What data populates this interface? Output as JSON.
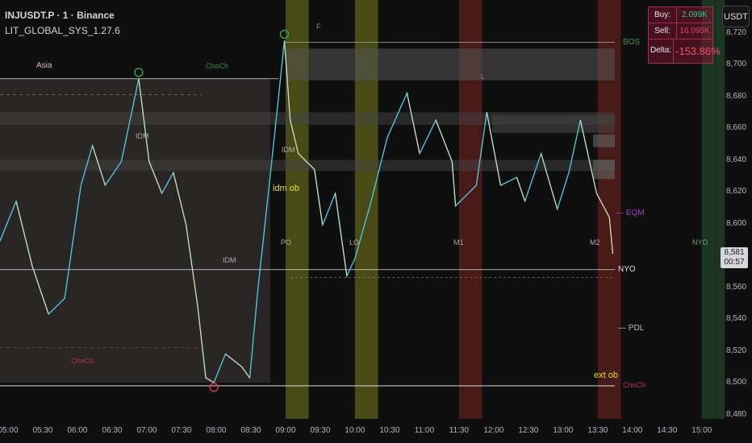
{
  "header": {
    "symbol": "INJUSDT.P · 1 · Binance",
    "indicator": "LIT_GLOBAL_SYS_1.27.6"
  },
  "currency_button": "USDT",
  "delta_table": {
    "rows": [
      {
        "key": "Buy:",
        "value": "2.099K",
        "color": "#26d07c"
      },
      {
        "key": "Sell:",
        "value": "16.095K",
        "color": "#e0426a"
      },
      {
        "key": "Delta:",
        "value": "-153.86%",
        "color": "#f0506e"
      }
    ]
  },
  "current_price": {
    "price": "8,581",
    "countdown": "00:57"
  },
  "colors": {
    "background": "#0f0f0f",
    "up": "#4fc3d9",
    "down": "#f0e6b0",
    "session_yellow": "#5b5f1a",
    "session_red": "#4a1d1a",
    "session_green": "#1d3a24",
    "asia_box": "#2a2625"
  },
  "annotations": [
    {
      "text": "Asia",
      "color": "#e0b0c0"
    },
    {
      "text": "ChoCh",
      "color": "#3c8c4a"
    },
    {
      "text": "F",
      "color": "#888"
    },
    {
      "text": "L",
      "color": "#888"
    },
    {
      "text": "BOS",
      "color": "#4c8c5a"
    },
    {
      "text": "IDM",
      "color": "#aaa"
    },
    {
      "text": "IDM",
      "color": "#aaa"
    },
    {
      "text": "idm ob",
      "color": "#d9e03a"
    },
    {
      "text": "PO",
      "color": "#aaa"
    },
    {
      "text": "LO",
      "color": "#aaa"
    },
    {
      "text": "M1",
      "color": "#aaa"
    },
    {
      "text": "M2",
      "color": "#aaa"
    },
    {
      "text": "IDM",
      "color": "#aaa"
    },
    {
      "text": "NYO",
      "color": "#ddd"
    },
    {
      "text": "NYO",
      "color": "#6aa07a"
    },
    {
      "text": "— EQM",
      "color": "#a040c0"
    },
    {
      "text": "— PDL",
      "color": "#bbb"
    },
    {
      "text": "ChoCh",
      "color": "#c0304a"
    },
    {
      "text": "ext ob",
      "color": "#d9e03a"
    },
    {
      "text": "ChoCh",
      "color": "#c0304a"
    }
  ],
  "chart_data": {
    "type": "line",
    "title": "",
    "xlabel": "",
    "ylabel": "",
    "ylim": [
      8480,
      8730
    ],
    "xlim": [
      "04:53",
      "15:45"
    ],
    "y_ticks": [
      "8,720",
      "8,700",
      "8,680",
      "8,660",
      "8,640",
      "8,620",
      "8,600",
      "8,560",
      "8,540",
      "8,520",
      "8,500",
      "8,480"
    ],
    "y_tick_values": [
      8720,
      8700,
      8680,
      8660,
      8640,
      8620,
      8600,
      8560,
      8540,
      8520,
      8500,
      8480
    ],
    "x_ticks": [
      "05:00",
      "05:30",
      "06:00",
      "06:30",
      "07:00",
      "07:30",
      "08:00",
      "08:30",
      "09:00",
      "09:30",
      "10:00",
      "10:30",
      "11:00",
      "11:30",
      "12:00",
      "12:30",
      "13:00",
      "13:30",
      "14:00",
      "14:30",
      "15:00"
    ],
    "series": [
      {
        "x": [
          "04:53",
          "05:07",
          "05:21",
          "05:35",
          "05:49",
          "06:03",
          "06:13",
          "06:24",
          "06:38",
          "06:53",
          "07:02",
          "07:13",
          "07:23",
          "07:34",
          "07:44",
          "07:51",
          "07:58",
          "08:08",
          "08:22",
          "08:29",
          "08:36",
          "08:47",
          "08:54",
          "08:59",
          "09:04",
          "09:11",
          "09:25",
          "09:32",
          "09:43",
          "09:53",
          "10:00",
          "10:14",
          "10:28",
          "10:45",
          "10:56",
          "11:10",
          "11:24",
          "11:27",
          "11:45",
          "11:54",
          "12:06",
          "12:20",
          "12:27",
          "12:41",
          "12:55",
          "13:05",
          "13:15",
          "13:29",
          "13:40",
          "13:43"
        ],
        "values": [
          8589,
          8614,
          8573,
          8543,
          8553,
          8624,
          8649,
          8624,
          8639,
          8691,
          8639,
          8619,
          8632,
          8599,
          8548,
          8503,
          8500,
          8518,
          8510,
          8503,
          8558,
          8632,
          8680,
          8715,
          8665,
          8644,
          8634,
          8599,
          8619,
          8567,
          8578,
          8614,
          8654,
          8682,
          8644,
          8665,
          8639,
          8611,
          8624,
          8670,
          8624,
          8629,
          8614,
          8644,
          8609,
          8632,
          8665,
          8619,
          8604,
          8581
        ]
      }
    ],
    "sessions": [
      {
        "start": "09:00",
        "end": "09:20",
        "color": "yellow"
      },
      {
        "start": "10:00",
        "end": "10:20",
        "color": "yellow"
      },
      {
        "start": "11:30",
        "end": "11:50",
        "color": "red"
      },
      {
        "start": "13:30",
        "end": "13:50",
        "color": "red"
      },
      {
        "start": "15:00",
        "end": "15:20",
        "color": "green"
      }
    ],
    "levels": [
      {
        "name": "BOS",
        "price": 8710
      },
      {
        "name": "NYO",
        "price": 8571
      },
      {
        "name": "ChoCh",
        "price": 8498
      }
    ],
    "grid": false
  }
}
